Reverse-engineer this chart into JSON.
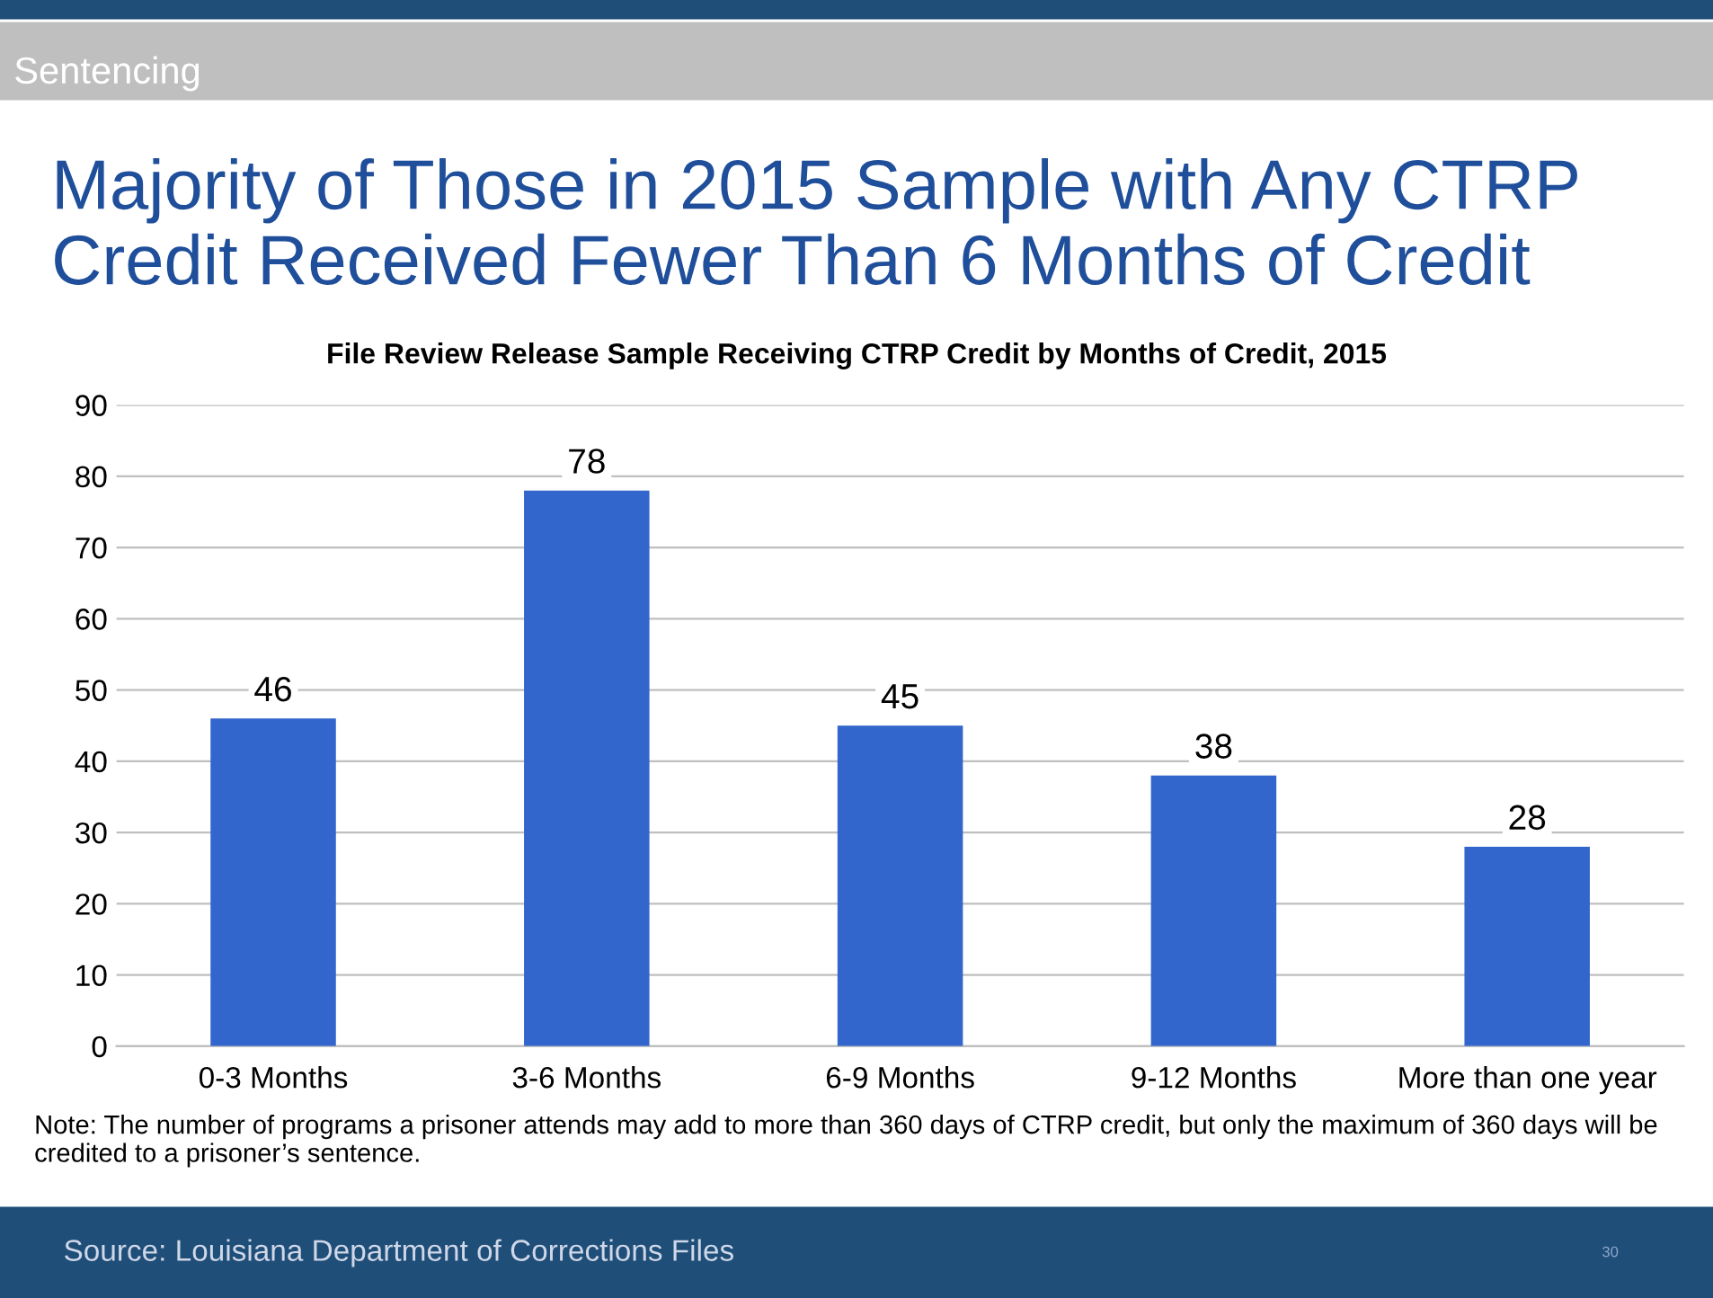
{
  "chart_data": {
    "type": "bar",
    "title": "Majority of Those in 2015 Sample with Any CTRP Credit Received Fewer Than 6 Months of Credit",
    "subtitle": "File Review Release Sample Receiving CTRP Credit by Months of Credit, 2015",
    "categories": [
      "0-3 Months",
      "3-6 Months",
      "6-9 Months",
      "9-12 Months",
      "More than one year"
    ],
    "values": [
      46,
      78,
      45,
      38,
      28
    ],
    "color": "#3366cc",
    "ylim": [
      0,
      90
    ],
    "yticks": [
      0,
      10,
      20,
      30,
      40,
      50,
      60,
      70,
      80,
      90
    ],
    "grid": "y",
    "data_labels": true,
    "legend": false,
    "annotations": [
      "Sentencing",
      "Note: The number of programs a prisoner attends may add to more than 360 days of CTRP credit, but only the maximum of 360 days will be credited to a prisoner’s sentence.",
      "Source: Louisiana Department of Corrections Files",
      "30"
    ]
  }
}
